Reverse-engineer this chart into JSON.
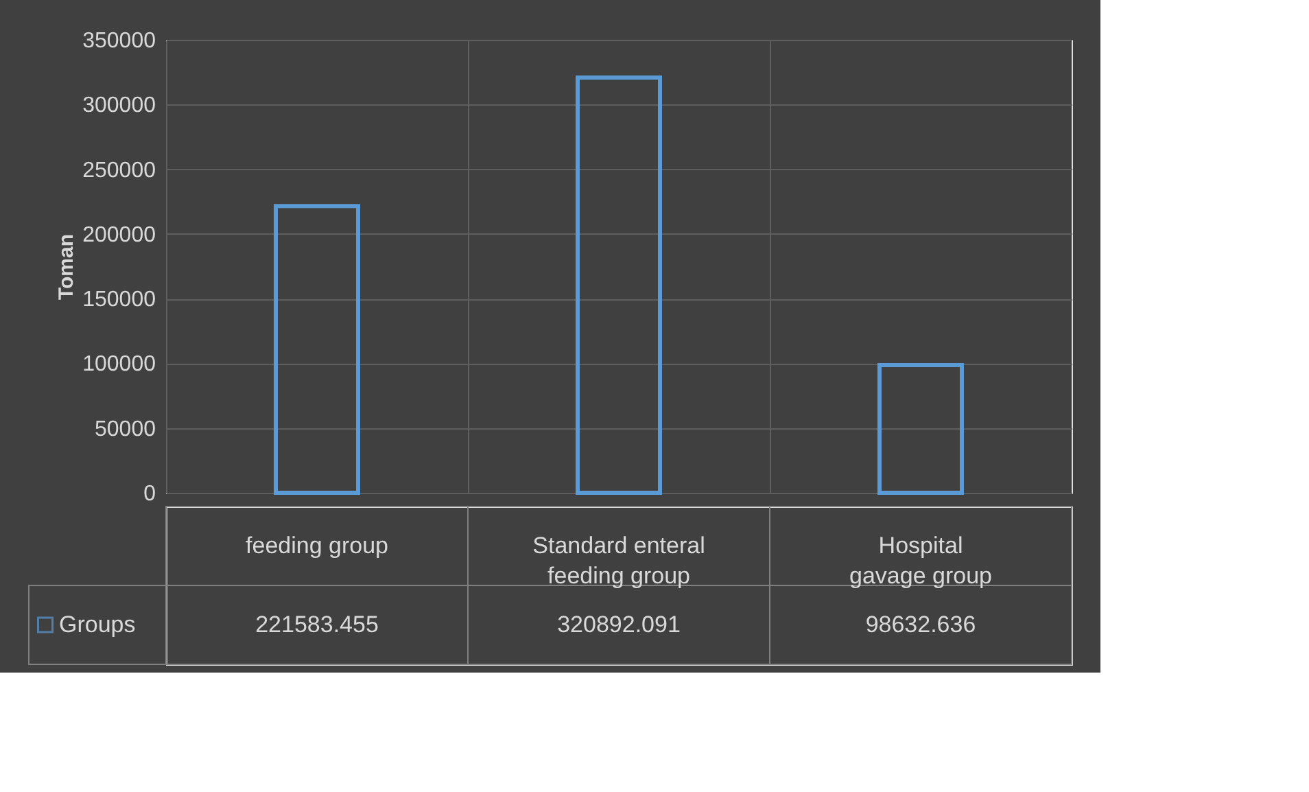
{
  "chart_data": {
    "type": "bar",
    "ylabel": "Toman",
    "categories": [
      "feeding group",
      "Standard enteral feeding group",
      "Hospital gavage group"
    ],
    "series": [
      {
        "name": "Groups",
        "color": "#5b9bd5",
        "values": [
          221583.455,
          320892.091,
          98632.636
        ]
      }
    ],
    "ylim": [
      0,
      350000
    ],
    "yticks": [
      0,
      50000,
      100000,
      150000,
      200000,
      250000,
      300000,
      350000
    ],
    "grid": true,
    "data_labels": true,
    "legend": "bottom left"
  }
}
